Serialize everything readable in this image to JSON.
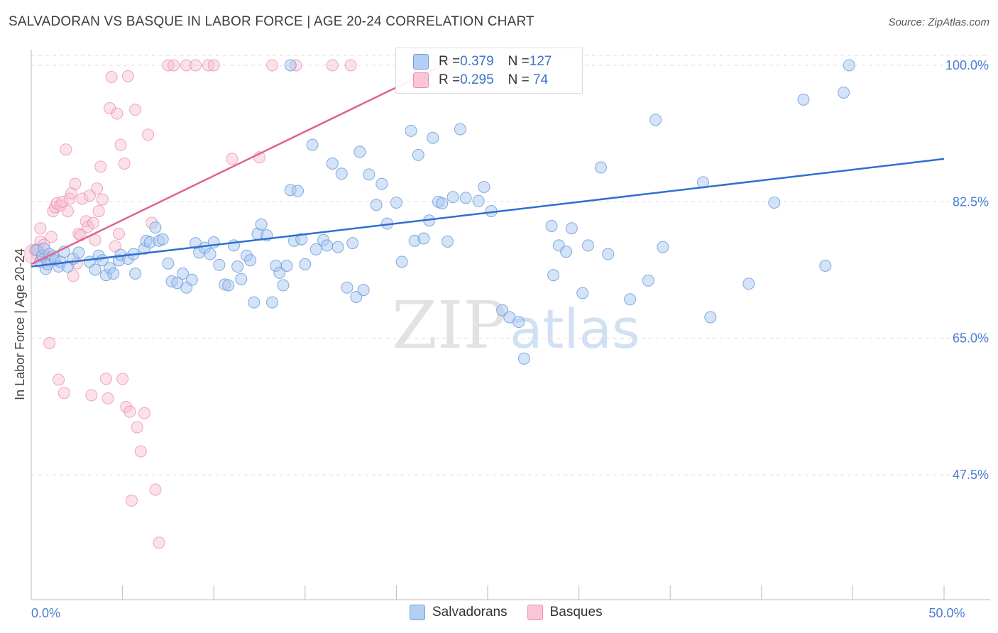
{
  "title": "SALVADORAN VS BASQUE IN LABOR FORCE | AGE 20-24 CORRELATION CHART",
  "source": "Source: ZipAtlas.com",
  "watermark": {
    "zip": "ZIP",
    "atlas": "atlas"
  },
  "legend": {
    "rows": [
      {
        "r_label": "R = ",
        "r_value": "0.379",
        "n_label": "N = ",
        "n_value": "127"
      },
      {
        "r_label": "R = ",
        "r_value": "0.295",
        "n_label": "N = ",
        "n_value": " 74"
      }
    ]
  },
  "bottom_legend": [
    "Salvadorans",
    "Basques"
  ],
  "colors": {
    "salvadoran_fill": "#a9c8f0",
    "salvadoran_stroke": "#6f9edc",
    "salvadoran_line": "#2f6fd0",
    "basque_fill": "#f7bfd1",
    "basque_stroke": "#ec90ae",
    "basque_line": "#e0628f",
    "axis_text": "#4a7fd0",
    "grid": "#dcdcdc"
  },
  "chart_data": {
    "type": "scatter",
    "title": "SALVADORAN VS BASQUE IN LABOR FORCE | AGE 20-24 CORRELATION CHART",
    "xlabel": "",
    "ylabel": "In Labor Force | Age 20-24",
    "xlim": [
      0,
      50
    ],
    "ylim": [
      31.5,
      102
    ],
    "x_ticks": [
      0,
      5,
      10,
      15,
      20,
      25,
      30,
      35,
      40,
      45,
      50
    ],
    "x_tick_labels": {
      "0": "0.0%",
      "50": "50.0%"
    },
    "y_ticks": [
      47.5,
      65.0,
      82.5,
      100.0
    ],
    "y_tick_labels": [
      "47.5%",
      "65.0%",
      "82.5%",
      "100.0%"
    ],
    "series": [
      {
        "name": "Salvadorans",
        "R": 0.379,
        "N": 127,
        "trend": {
          "x": [
            0,
            50
          ],
          "y": [
            74.2,
            88.0
          ]
        },
        "points": [
          [
            0.3,
            76.3
          ],
          [
            0.5,
            74.8
          ],
          [
            0.6,
            75.6
          ],
          [
            0.7,
            76.5
          ],
          [
            0.8,
            73.9
          ],
          [
            0.9,
            74.5
          ],
          [
            1.0,
            75.8
          ],
          [
            1.2,
            75.5
          ],
          [
            1.3,
            75.0
          ],
          [
            1.5,
            74.2
          ],
          [
            1.6,
            74.8
          ],
          [
            1.8,
            76.1
          ],
          [
            2.0,
            74.2
          ],
          [
            2.3,
            75.2
          ],
          [
            2.6,
            76.0
          ],
          [
            3.2,
            74.8
          ],
          [
            3.5,
            73.8
          ],
          [
            3.7,
            75.6
          ],
          [
            3.9,
            75.0
          ],
          [
            4.1,
            73.1
          ],
          [
            4.3,
            74.0
          ],
          [
            4.5,
            73.3
          ],
          [
            4.8,
            75.0
          ],
          [
            4.9,
            75.7
          ],
          [
            5.3,
            75.2
          ],
          [
            5.6,
            75.8
          ],
          [
            5.7,
            73.3
          ],
          [
            6.2,
            76.5
          ],
          [
            6.3,
            77.5
          ],
          [
            6.5,
            77.3
          ],
          [
            6.8,
            79.2
          ],
          [
            7.0,
            77.5
          ],
          [
            7.2,
            77.7
          ],
          [
            7.5,
            74.6
          ],
          [
            7.7,
            72.3
          ],
          [
            8.0,
            72.1
          ],
          [
            8.3,
            73.3
          ],
          [
            8.5,
            71.5
          ],
          [
            8.8,
            72.5
          ],
          [
            9.0,
            77.2
          ],
          [
            9.2,
            76.0
          ],
          [
            9.5,
            76.6
          ],
          [
            9.8,
            75.8
          ],
          [
            10.0,
            77.3
          ],
          [
            10.3,
            74.4
          ],
          [
            10.6,
            71.9
          ],
          [
            10.8,
            71.8
          ],
          [
            11.1,
            76.9
          ],
          [
            11.3,
            74.2
          ],
          [
            11.5,
            72.6
          ],
          [
            11.8,
            75.6
          ],
          [
            12.0,
            75.0
          ],
          [
            12.2,
            69.6
          ],
          [
            12.4,
            78.4
          ],
          [
            12.6,
            79.6
          ],
          [
            12.9,
            78.2
          ],
          [
            13.2,
            69.6
          ],
          [
            13.4,
            74.3
          ],
          [
            13.6,
            73.4
          ],
          [
            13.8,
            71.8
          ],
          [
            14.0,
            74.3
          ],
          [
            14.2,
            84.0
          ],
          [
            14.4,
            77.5
          ],
          [
            14.6,
            83.9
          ],
          [
            14.8,
            77.7
          ],
          [
            15.0,
            74.5
          ],
          [
            15.4,
            89.8
          ],
          [
            15.6,
            76.4
          ],
          [
            16.0,
            77.6
          ],
          [
            16.2,
            76.9
          ],
          [
            16.5,
            87.4
          ],
          [
            16.8,
            76.7
          ],
          [
            17.0,
            86.1
          ],
          [
            17.3,
            71.5
          ],
          [
            17.6,
            77.2
          ],
          [
            17.8,
            70.3
          ],
          [
            18.0,
            88.9
          ],
          [
            18.2,
            71.2
          ],
          [
            18.5,
            86.0
          ],
          [
            18.9,
            82.1
          ],
          [
            19.2,
            84.8
          ],
          [
            19.5,
            79.7
          ],
          [
            20.0,
            82.4
          ],
          [
            20.3,
            74.8
          ],
          [
            20.8,
            91.6
          ],
          [
            21.0,
            77.5
          ],
          [
            21.2,
            88.5
          ],
          [
            21.5,
            77.8
          ],
          [
            21.8,
            80.1
          ],
          [
            22.0,
            90.7
          ],
          [
            22.3,
            82.5
          ],
          [
            22.5,
            82.3
          ],
          [
            22.8,
            77.4
          ],
          [
            23.1,
            83.1
          ],
          [
            23.5,
            91.8
          ],
          [
            23.8,
            83.0
          ],
          [
            24.5,
            82.6
          ],
          [
            24.8,
            84.4
          ],
          [
            25.2,
            81.3
          ],
          [
            25.8,
            68.6
          ],
          [
            26.2,
            67.7
          ],
          [
            26.7,
            67.1
          ],
          [
            27.0,
            62.4
          ],
          [
            28.5,
            79.4
          ],
          [
            28.6,
            73.1
          ],
          [
            28.9,
            76.9
          ],
          [
            29.3,
            76.1
          ],
          [
            29.6,
            79.1
          ],
          [
            30.2,
            70.8
          ],
          [
            30.5,
            76.9
          ],
          [
            31.2,
            86.9
          ],
          [
            31.6,
            75.8
          ],
          [
            32.8,
            70.0
          ],
          [
            33.8,
            72.4
          ],
          [
            34.2,
            93.0
          ],
          [
            34.6,
            76.7
          ],
          [
            36.8,
            85.0
          ],
          [
            37.2,
            67.7
          ],
          [
            39.3,
            72.0
          ],
          [
            40.7,
            82.4
          ],
          [
            42.3,
            95.6
          ],
          [
            43.5,
            74.3
          ],
          [
            44.5,
            96.5
          ],
          [
            44.8,
            100.0
          ],
          [
            14.2,
            100.0
          ]
        ]
      },
      {
        "name": "Basques",
        "R": 0.295,
        "N": 74,
        "trend": {
          "x": [
            0,
            22.5
          ],
          "y": [
            74.5,
            100.0
          ]
        },
        "points": [
          [
            0.2,
            76.3
          ],
          [
            0.3,
            75.8
          ],
          [
            0.4,
            76.5
          ],
          [
            0.5,
            77.4
          ],
          [
            0.5,
            79.1
          ],
          [
            0.6,
            75.4
          ],
          [
            0.7,
            77.0
          ],
          [
            0.8,
            75.6
          ],
          [
            0.9,
            74.9
          ],
          [
            1.0,
            64.4
          ],
          [
            1.1,
            78.0
          ],
          [
            1.2,
            81.3
          ],
          [
            1.3,
            81.8
          ],
          [
            1.4,
            82.3
          ],
          [
            1.5,
            59.7
          ],
          [
            1.6,
            82.0
          ],
          [
            1.7,
            82.5
          ],
          [
            1.8,
            58.0
          ],
          [
            1.9,
            89.2
          ],
          [
            2.0,
            81.3
          ],
          [
            2.1,
            82.9
          ],
          [
            2.2,
            83.6
          ],
          [
            2.3,
            73.0
          ],
          [
            2.4,
            84.8
          ],
          [
            2.5,
            74.6
          ],
          [
            2.6,
            78.4
          ],
          [
            2.7,
            78.2
          ],
          [
            2.8,
            82.9
          ],
          [
            3.0,
            80.0
          ],
          [
            3.1,
            79.3
          ],
          [
            3.2,
            83.3
          ],
          [
            3.3,
            57.7
          ],
          [
            3.4,
            79.8
          ],
          [
            3.5,
            77.6
          ],
          [
            3.6,
            84.2
          ],
          [
            3.7,
            81.3
          ],
          [
            3.8,
            87.0
          ],
          [
            3.9,
            82.8
          ],
          [
            4.1,
            59.8
          ],
          [
            4.2,
            57.3
          ],
          [
            4.3,
            94.5
          ],
          [
            4.4,
            98.5
          ],
          [
            4.6,
            76.8
          ],
          [
            4.7,
            93.8
          ],
          [
            4.8,
            78.4
          ],
          [
            4.9,
            89.8
          ],
          [
            5.0,
            59.8
          ],
          [
            5.1,
            87.4
          ],
          [
            5.2,
            56.2
          ],
          [
            5.3,
            98.6
          ],
          [
            5.4,
            55.6
          ],
          [
            5.5,
            44.2
          ],
          [
            5.7,
            94.3
          ],
          [
            5.8,
            53.6
          ],
          [
            6.0,
            50.5
          ],
          [
            6.2,
            55.4
          ],
          [
            6.4,
            91.1
          ],
          [
            6.6,
            79.8
          ],
          [
            6.8,
            45.6
          ],
          [
            7.0,
            38.8
          ],
          [
            7.5,
            100.0
          ],
          [
            7.8,
            100.0
          ],
          [
            8.5,
            100.0
          ],
          [
            9.0,
            100.0
          ],
          [
            9.7,
            100.0
          ],
          [
            10.0,
            100.0
          ],
          [
            11.0,
            88.0
          ],
          [
            12.5,
            88.2
          ],
          [
            13.2,
            100.0
          ],
          [
            14.5,
            100.0
          ],
          [
            16.5,
            100.0
          ],
          [
            17.5,
            100.0
          ],
          [
            22.3,
            100.0
          ],
          [
            23.0,
            100.0
          ]
        ]
      }
    ]
  }
}
